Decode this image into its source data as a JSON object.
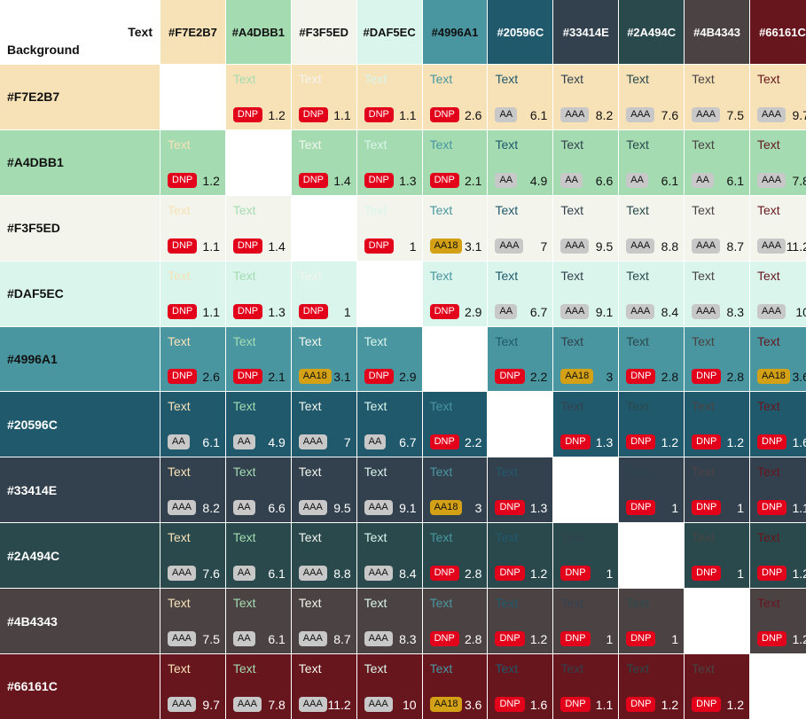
{
  "header": {
    "text_label": "Text",
    "background_label": "Background"
  },
  "sample_text": "Text",
  "colors": [
    "#F7E2B7",
    "#A4DBB1",
    "#F3F5ED",
    "#DAF5EC",
    "#4996A1",
    "#20596C",
    "#33414E",
    "#2A494C",
    "#4B4343",
    "#66161C"
  ],
  "header_text_colors": [
    "#111111",
    "#111111",
    "#111111",
    "#111111",
    "#111111",
    "#ffffff",
    "#ffffff",
    "#ffffff",
    "#ffffff",
    "#ffffff"
  ],
  "row_label_colors": [
    "#111111",
    "#111111",
    "#111111",
    "#111111",
    "#111111",
    "#ffffff",
    "#ffffff",
    "#ffffff",
    "#ffffff",
    "#ffffff"
  ],
  "ratios": [
    [
      null,
      "1.2",
      "1.1",
      "1.1",
      "2.6",
      "6.1",
      "8.2",
      "7.6",
      "7.5",
      "9.7"
    ],
    [
      "1.2",
      null,
      "1.4",
      "1.3",
      "2.1",
      "4.9",
      "6.6",
      "6.1",
      "6.1",
      "7.8"
    ],
    [
      "1.1",
      "1.4",
      null,
      "1",
      "3.1",
      "7",
      "9.5",
      "8.8",
      "8.7",
      "11.2"
    ],
    [
      "1.1",
      "1.3",
      "1",
      null,
      "2.9",
      "6.7",
      "9.1",
      "8.4",
      "8.3",
      "10"
    ],
    [
      "2.6",
      "2.1",
      "3.1",
      "2.9",
      null,
      "2.2",
      "3",
      "2.8",
      "2.8",
      "3.6"
    ],
    [
      "6.1",
      "4.9",
      "7",
      "6.7",
      "2.2",
      null,
      "1.3",
      "1.2",
      "1.2",
      "1.6"
    ],
    [
      "8.2",
      "6.6",
      "9.5",
      "9.1",
      "3",
      "1.3",
      null,
      "1",
      "1",
      "1.1"
    ],
    [
      "7.6",
      "6.1",
      "8.8",
      "8.4",
      "2.8",
      "1.2",
      "1",
      null,
      "1",
      "1.2"
    ],
    [
      "7.5",
      "6.1",
      "8.7",
      "8.3",
      "2.8",
      "1.2",
      "1",
      "1",
      null,
      "1.2"
    ],
    [
      "9.7",
      "7.8",
      "11.2",
      "10",
      "3.6",
      "1.6",
      "1.1",
      "1.2",
      "1.2",
      null
    ]
  ],
  "grades": [
    [
      null,
      "DNP",
      "DNP",
      "DNP",
      "DNP",
      "AA",
      "AAA",
      "AAA",
      "AAA",
      "AAA"
    ],
    [
      "DNP",
      null,
      "DNP",
      "DNP",
      "DNP",
      "AA",
      "AA",
      "AA",
      "AA",
      "AAA"
    ],
    [
      "DNP",
      "DNP",
      null,
      "DNP",
      "AA18",
      "AAA",
      "AAA",
      "AAA",
      "AAA",
      "AAA"
    ],
    [
      "DNP",
      "DNP",
      "DNP",
      null,
      "DNP",
      "AA",
      "AAA",
      "AAA",
      "AAA",
      "AAA"
    ],
    [
      "DNP",
      "DNP",
      "AA18",
      "DNP",
      null,
      "DNP",
      "AA18",
      "DNP",
      "DNP",
      "AA18"
    ],
    [
      "AA",
      "AA",
      "AAA",
      "AA",
      "DNP",
      null,
      "DNP",
      "DNP",
      "DNP",
      "DNP"
    ],
    [
      "AAA",
      "AA",
      "AAA",
      "AAA",
      "AA18",
      "DNP",
      null,
      "DNP",
      "DNP",
      "DNP"
    ],
    [
      "AAA",
      "AA",
      "AAA",
      "AAA",
      "DNP",
      "DNP",
      "DNP",
      null,
      "DNP",
      "DNP"
    ],
    [
      "AAA",
      "AA",
      "AAA",
      "AAA",
      "DNP",
      "DNP",
      "DNP",
      "DNP",
      null,
      "DNP"
    ],
    [
      "AAA",
      "AAA",
      "AAA",
      "AAA",
      "AA18",
      "DNP",
      "DNP",
      "DNP",
      "DNP",
      null
    ]
  ]
}
